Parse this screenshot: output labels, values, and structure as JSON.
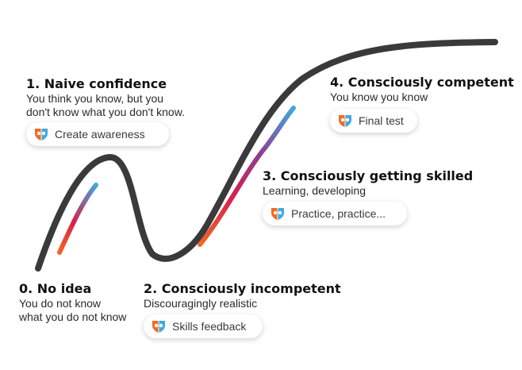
{
  "stages": [
    {
      "title": "0. No idea",
      "desc_lines": [
        "You do not know",
        "what you do not know"
      ],
      "action": "Skills feedback"
    },
    {
      "title": "1. Naive confidence",
      "desc_lines": [
        "You think you know, but you",
        "don't know what you don't know."
      ],
      "action": "Create awareness"
    },
    {
      "title": "2. Consciously incompetent",
      "desc_lines": [
        "Discouragingly realistic"
      ],
      "action": "Skills feedback"
    },
    {
      "title": "3. Consciously getting skilled",
      "desc_lines": [
        "Learning, developing"
      ],
      "action": "Practice, practice..."
    },
    {
      "title": "4. Consciously competent",
      "desc_lines": [
        "You know you know"
      ],
      "action": "Final test"
    }
  ],
  "pills": {
    "create_awareness": "Create awareness",
    "skills_feedback": "Skills feedback",
    "practice": "Practice, practice...",
    "final_test": "Final test"
  },
  "colors": {
    "curve": "#3a3a3c",
    "gradient_start": "#f26a21",
    "gradient_mid": "#d6204f",
    "gradient_end": "#3fa9e0"
  },
  "icons": {
    "pill_logo": "brand-shield-logo-icon"
  }
}
